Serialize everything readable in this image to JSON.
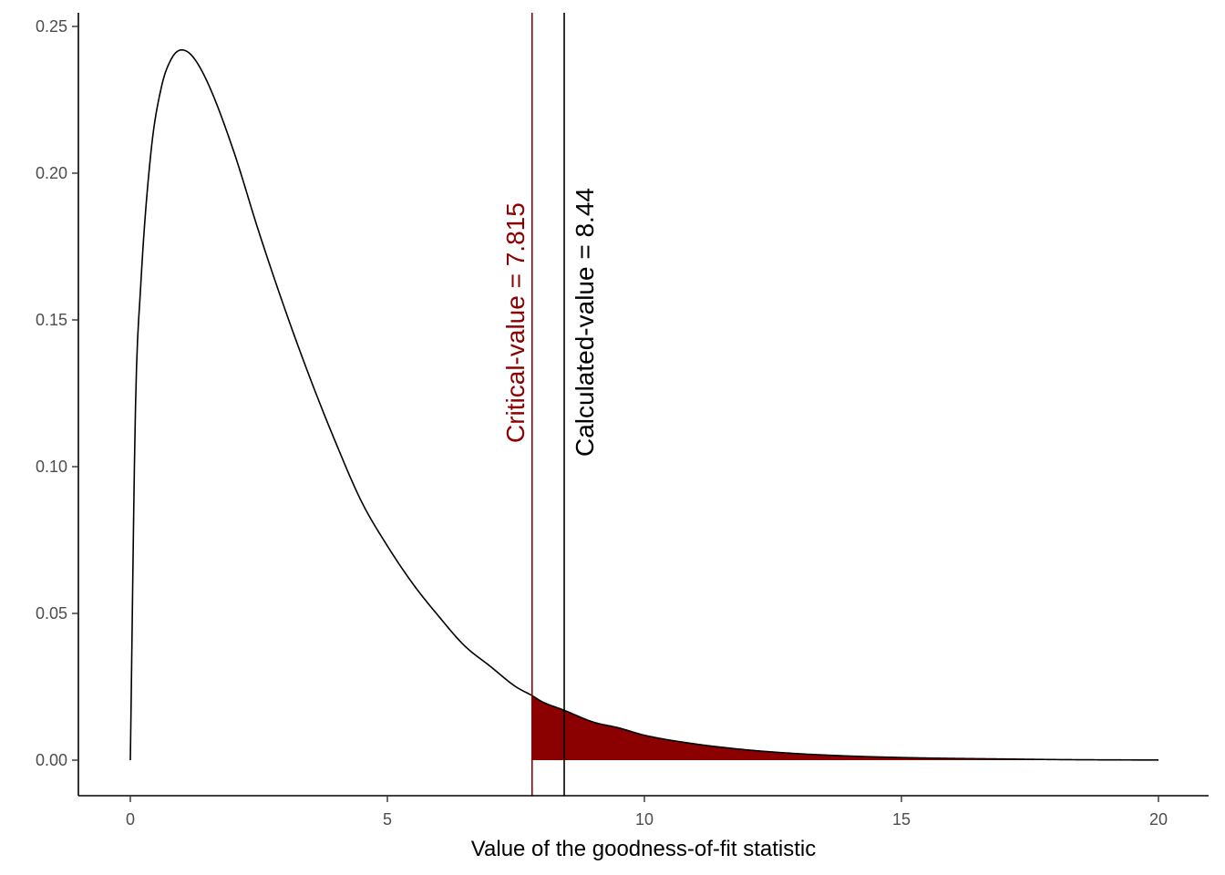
{
  "chart_data": {
    "type": "area",
    "xlabel": "Value of the goodness-of-fit statistic",
    "ylabel": "",
    "xlim": [
      -1,
      20.9
    ],
    "ylim": [
      -0.012,
      0.254
    ],
    "x_ticks": [
      0,
      5,
      10,
      15,
      20
    ],
    "x_tick_labels": [
      "0",
      "5",
      "10",
      "15",
      "20"
    ],
    "y_ticks": [
      0.0,
      0.05,
      0.1,
      0.15,
      0.2,
      0.25
    ],
    "y_tick_labels": [
      "0.00",
      "0.05",
      "0.10",
      "0.15",
      "0.20",
      "0.25"
    ],
    "grid": false,
    "series": [
      {
        "x": [
          0,
          0.1,
          0.2,
          0.4,
          0.6,
          0.8,
          1.0,
          1.2,
          1.5,
          2.0,
          2.5,
          3.0,
          3.5,
          4.0,
          4.5,
          5.0,
          5.5,
          6.0,
          6.5,
          7.0,
          7.5,
          7.815,
          8.0,
          8.44,
          9.0,
          9.5,
          10.0,
          11.0,
          12.0,
          13.0,
          14.0,
          15.0,
          16.0,
          17.0,
          18.0,
          19.0,
          20.0
        ],
        "y": [
          0.0,
          0.12,
          0.161,
          0.207,
          0.229,
          0.239,
          0.242,
          0.24,
          0.231,
          0.208,
          0.18,
          0.154,
          0.13,
          0.108,
          0.088,
          0.073,
          0.06,
          0.049,
          0.039,
          0.032,
          0.025,
          0.022,
          0.02,
          0.017,
          0.013,
          0.011,
          0.0085,
          0.0055,
          0.0035,
          0.0022,
          0.0014,
          0.0009,
          0.0006,
          0.0004,
          0.0002,
          0.0001,
          5e-05
        ],
        "color": "#000000"
      }
    ],
    "shaded_region": {
      "x_from": 7.815,
      "x_to": 20,
      "color": "#8B0000"
    },
    "vlines": [
      {
        "x": 7.815,
        "label": "Critical-value = 7.815",
        "color": "#8B0000"
      },
      {
        "x": 8.44,
        "label": "Calculated-value = 8.44",
        "color": "#000000"
      }
    ]
  }
}
